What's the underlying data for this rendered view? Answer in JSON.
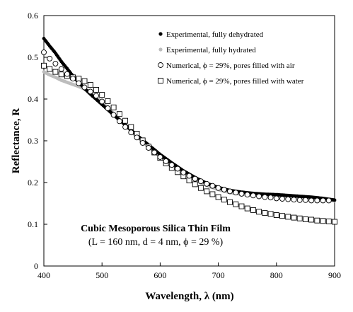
{
  "chart_data": {
    "type": "scatter",
    "xlabel": "Wavelength, λ (nm)",
    "ylabel": "Reflectance, R",
    "xlim": [
      400,
      900
    ],
    "ylim": [
      0,
      0.6
    ],
    "x_ticks": [
      "400",
      "500",
      "600",
      "700",
      "800",
      "900"
    ],
    "y_ticks": [
      "0",
      "0.1",
      "0.2",
      "0.3",
      "0.4",
      "0.5",
      "0.6"
    ],
    "grid": false,
    "legend_position": "top-right",
    "annotation": {
      "line1": "Cubic Mesoporous Silica Thin Film",
      "line2": "(L = 160 nm, d = 4 nm, ϕ = 29 %)"
    },
    "series": [
      {
        "name": "Experimental, fully dehydrated",
        "marker": "filled-dot-dense",
        "color": "#000000",
        "x": [
          400,
          410,
          420,
          430,
          440,
          450,
          460,
          470,
          480,
          500,
          520,
          540,
          560,
          580,
          600,
          620,
          640,
          660,
          680,
          700,
          720,
          740,
          760,
          780,
          800,
          820,
          840,
          860,
          880,
          900
        ],
        "y": [
          0.545,
          0.527,
          0.51,
          0.49,
          0.473,
          0.455,
          0.44,
          0.425,
          0.412,
          0.387,
          0.362,
          0.338,
          0.313,
          0.29,
          0.267,
          0.247,
          0.228,
          0.212,
          0.198,
          0.188,
          0.181,
          0.177,
          0.174,
          0.172,
          0.171,
          0.169,
          0.167,
          0.165,
          0.162,
          0.158
        ]
      },
      {
        "name": "Experimental, fully hydrated",
        "marker": "filled-dot-dense",
        "color": "#bdbdbd",
        "x": [
          400,
          410,
          420,
          430,
          440,
          450,
          460,
          470,
          480,
          500,
          520,
          540,
          560,
          580,
          600,
          620,
          640,
          660,
          680,
          700,
          720,
          740,
          760,
          780,
          800,
          820,
          840,
          860,
          880,
          900
        ],
        "y": [
          0.465,
          0.458,
          0.452,
          0.445,
          0.44,
          0.435,
          0.43,
          0.424,
          0.416,
          0.392,
          0.365,
          0.338,
          0.31,
          0.285,
          0.262,
          0.24,
          0.222,
          0.206,
          0.193,
          0.183,
          0.176,
          0.172,
          0.17,
          0.168,
          0.167,
          0.165,
          0.163,
          0.161,
          0.159,
          0.156
        ]
      },
      {
        "name": "Numerical, ϕ = 29%, pores filled with air",
        "marker": "open-circle",
        "color": "#000000",
        "x": [
          400,
          410,
          420,
          430,
          440,
          450,
          460,
          470,
          480,
          490,
          500,
          510,
          520,
          530,
          540,
          550,
          560,
          570,
          580,
          590,
          600,
          610,
          620,
          630,
          640,
          650,
          660,
          670,
          680,
          690,
          700,
          710,
          720,
          730,
          740,
          750,
          760,
          770,
          780,
          790,
          800,
          810,
          820,
          830,
          840,
          850,
          860,
          870,
          880,
          890
        ],
        "y": [
          0.512,
          0.497,
          0.485,
          0.472,
          0.46,
          0.449,
          0.438,
          0.428,
          0.418,
          0.408,
          0.394,
          0.378,
          0.362,
          0.347,
          0.333,
          0.32,
          0.308,
          0.295,
          0.283,
          0.272,
          0.261,
          0.251,
          0.242,
          0.233,
          0.224,
          0.216,
          0.209,
          0.203,
          0.197,
          0.192,
          0.187,
          0.183,
          0.179,
          0.176,
          0.173,
          0.171,
          0.169,
          0.167,
          0.165,
          0.164,
          0.162,
          0.161,
          0.16,
          0.159,
          0.158,
          0.158,
          0.157,
          0.157,
          0.157,
          0.157
        ]
      },
      {
        "name": "Numerical, ϕ = 29%, pores filled with water",
        "marker": "open-square",
        "color": "#000000",
        "x": [
          400,
          410,
          420,
          430,
          440,
          450,
          460,
          470,
          480,
          490,
          500,
          510,
          520,
          530,
          540,
          550,
          560,
          570,
          580,
          590,
          600,
          610,
          620,
          630,
          640,
          650,
          660,
          670,
          680,
          690,
          700,
          710,
          720,
          730,
          740,
          750,
          760,
          770,
          780,
          790,
          800,
          810,
          820,
          830,
          840,
          850,
          860,
          870,
          880,
          890,
          900
        ],
        "y": [
          0.48,
          0.472,
          0.465,
          0.459,
          0.455,
          0.452,
          0.449,
          0.443,
          0.434,
          0.422,
          0.41,
          0.395,
          0.38,
          0.364,
          0.348,
          0.333,
          0.317,
          0.301,
          0.286,
          0.272,
          0.259,
          0.246,
          0.235,
          0.225,
          0.215,
          0.205,
          0.196,
          0.187,
          0.179,
          0.172,
          0.165,
          0.159,
          0.153,
          0.148,
          0.143,
          0.138,
          0.134,
          0.13,
          0.127,
          0.125,
          0.122,
          0.12,
          0.118,
          0.116,
          0.114,
          0.112,
          0.111,
          0.109,
          0.108,
          0.107,
          0.106
        ]
      }
    ]
  }
}
